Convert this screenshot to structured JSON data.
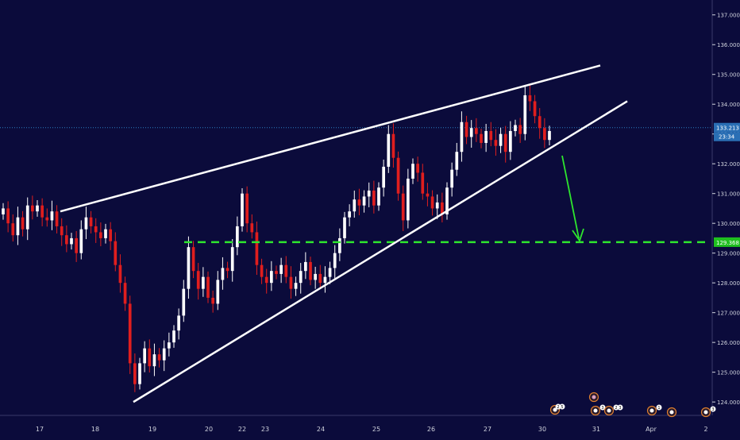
{
  "colors": {
    "background": "#0b0b3b",
    "bull": "#ffffff",
    "bear": "#e01e1e",
    "trendline": "#ffffff",
    "target_line": "#2ee62e",
    "price_line": "#2a7fc1",
    "axis_text": "#cfd2dc",
    "axis_line": "#3a3a6a"
  },
  "chart_data": {
    "type": "candlestick",
    "title": "",
    "xlabel": "",
    "ylabel": "",
    "ylim": [
      123.55,
      137.5
    ],
    "grid": false,
    "y_ticks": [
      "124.000",
      "125.000",
      "126.000",
      "127.000",
      "128.000",
      "129.000",
      "130.000",
      "131.000",
      "132.000",
      "133.000",
      "134.000",
      "135.000",
      "136.000",
      "137.000"
    ],
    "x_ticks": [
      "17",
      "18",
      "19",
      "20",
      "22",
      "23",
      "24",
      "25",
      "26",
      "27",
      "30",
      "31",
      "Apr",
      "2"
    ],
    "close_series": [
      130.5,
      130.0,
      129.6,
      130.2,
      129.8,
      130.6,
      130.4,
      130.6,
      130.2,
      130.1,
      130.4,
      129.9,
      129.6,
      129.3,
      129.5,
      129.0,
      129.8,
      130.2,
      129.9,
      129.7,
      129.5,
      129.8,
      129.4,
      128.6,
      128.0,
      127.3,
      125.3,
      124.6,
      125.3,
      125.8,
      125.2,
      125.6,
      125.4,
      125.8,
      126.0,
      126.4,
      126.9,
      127.8,
      129.2,
      128.4,
      127.8,
      128.2,
      127.5,
      127.3,
      128.1,
      128.5,
      128.4,
      129.2,
      129.9,
      131.0,
      130.0,
      129.7,
      128.6,
      128.2,
      128.0,
      128.4,
      128.3,
      128.6,
      128.2,
      127.8,
      128.0,
      128.4,
      128.7,
      128.1,
      128.3,
      128.0,
      128.2,
      128.5,
      129.0,
      129.5,
      130.2,
      130.4,
      130.8,
      130.6,
      130.9,
      131.1,
      130.6,
      131.2,
      131.9,
      133.0,
      132.2,
      131.0,
      130.1,
      131.5,
      132.0,
      131.7,
      131.0,
      130.9,
      130.5,
      130.7,
      130.3,
      131.2,
      131.8,
      132.4,
      133.4,
      132.9,
      133.2,
      133.0,
      132.7,
      133.1,
      132.8,
      132.6,
      133.0,
      132.4,
      133.1,
      133.3,
      133.0,
      134.3,
      134.1,
      133.6,
      133.2,
      132.8,
      133.1
    ],
    "current_price": "133.213",
    "countdown": "23:34",
    "target_price": "129.368",
    "resistance_line": {
      "x": [
        "17",
        "30"
      ],
      "y": [
        130.4,
        135.3
      ]
    },
    "support_line": {
      "x": [
        "18",
        "31"
      ],
      "y": [
        124.0,
        134.1
      ]
    },
    "event_markers": [
      {
        "x": "30",
        "labels": [
          "2",
          "5"
        ]
      },
      {
        "x": "31",
        "labels": [
          "",
          "3"
        ]
      },
      {
        "x": "31",
        "labels": [
          "",
          "2",
          "3"
        ]
      },
      {
        "x": "31",
        "labels": [
          "",
          "1"
        ]
      },
      {
        "x": "Apr",
        "labels": [
          ""
        ]
      },
      {
        "x": "2",
        "labels": [
          "",
          "3"
        ]
      }
    ]
  }
}
